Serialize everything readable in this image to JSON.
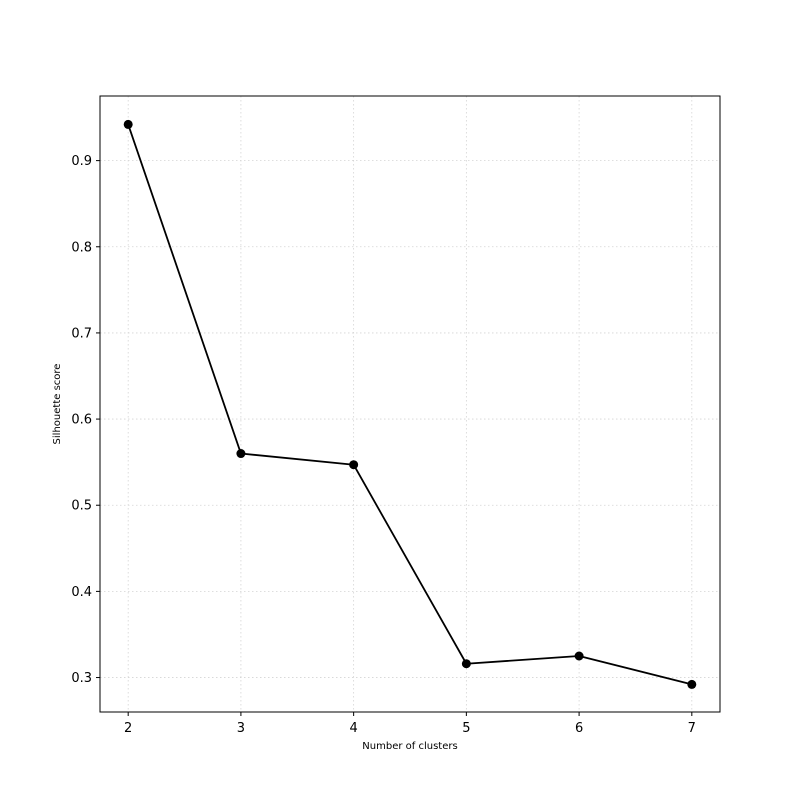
{
  "chart_data": {
    "type": "line",
    "title": "",
    "xlabel": "Number of clusters",
    "ylabel": "Silhouette score",
    "x": [
      2,
      3,
      4,
      5,
      6,
      7
    ],
    "series": [
      {
        "values": [
          0.942,
          0.56,
          0.547,
          0.316,
          0.325,
          0.292
        ],
        "color": "#000000",
        "marker": "circle"
      }
    ],
    "xlim": [
      1.75,
      7.25
    ],
    "ylim": [
      0.26,
      0.975
    ],
    "xticks": [
      2,
      3,
      4,
      5,
      6,
      7
    ],
    "yticks": [
      0.3,
      0.4,
      0.5,
      0.6,
      0.7,
      0.8,
      0.9
    ],
    "xtick_labels": [
      "2",
      "3",
      "4",
      "5",
      "6",
      "7"
    ],
    "ytick_labels": [
      "0.3",
      "0.4",
      "0.5",
      "0.6",
      "0.7",
      "0.8",
      "0.9"
    ],
    "grid": true,
    "grid_style": "dotted",
    "legend": "none"
  }
}
